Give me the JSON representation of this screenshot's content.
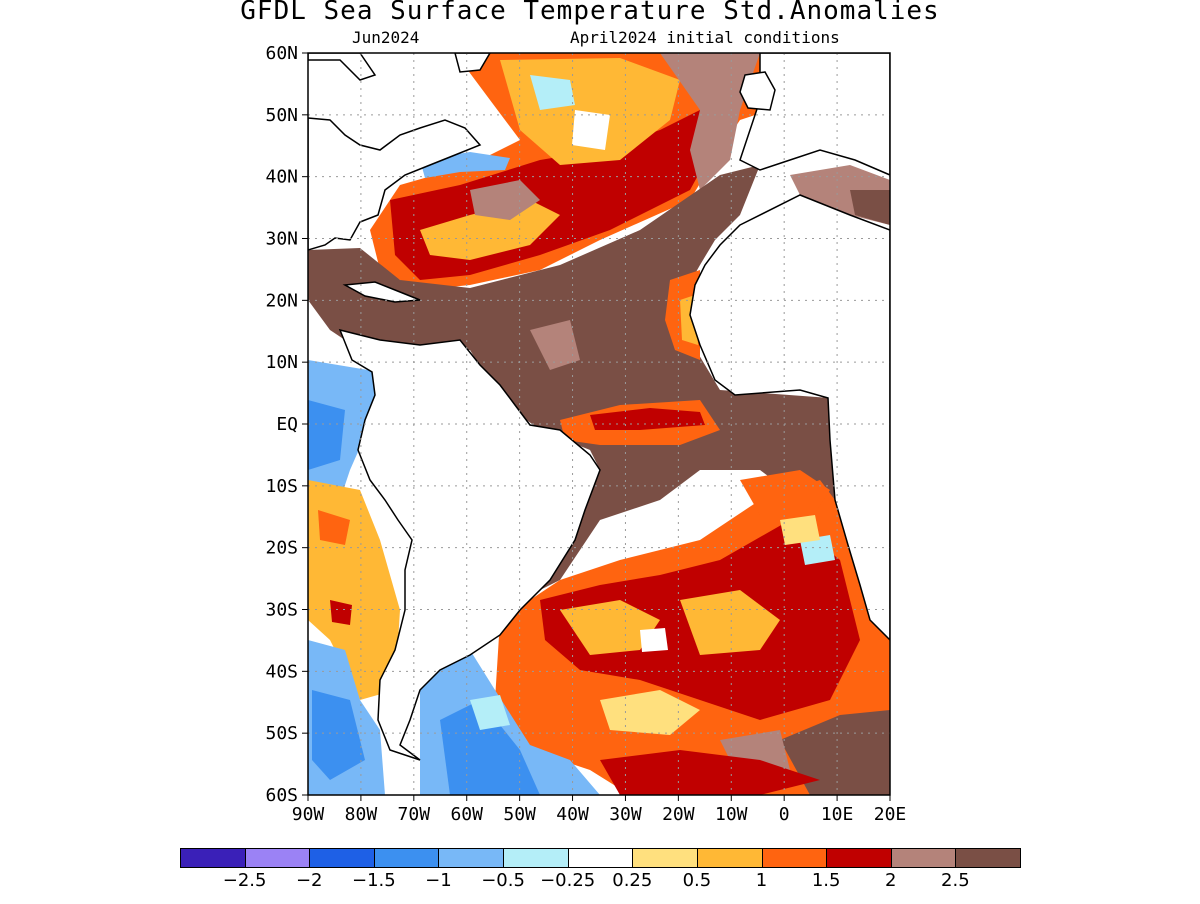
{
  "title": "GFDL Sea Surface Temperature Std.Anomalies",
  "subtitle_left": "Jun2024",
  "subtitle_right": "April2024 initial conditions",
  "map": {
    "lon_range": [
      -90,
      20
    ],
    "lat_range": [
      -60,
      60
    ],
    "lon_ticks": [
      "90W",
      "80W",
      "70W",
      "60W",
      "50W",
      "40W",
      "30W",
      "20W",
      "10W",
      "0",
      "10E",
      "20E"
    ],
    "lat_ticks": [
      "60N",
      "50N",
      "40N",
      "30N",
      "20N",
      "10N",
      "EQ",
      "10S",
      "20S",
      "30S",
      "40S",
      "50S",
      "60S"
    ],
    "grid": "dotted",
    "land_color": "#ffffff",
    "coastline_color": "#000000"
  },
  "colorbar": {
    "colors": [
      "#3a20b8",
      "#9b82f5",
      "#1e60e6",
      "#3c90f0",
      "#78b8f7",
      "#b4eef8",
      "#ffffff",
      "#ffe07e",
      "#ffb835",
      "#ff6410",
      "#c00000",
      "#b4837a",
      "#7a4f45"
    ],
    "labels": [
      "-2.5",
      "-2",
      "-1.5",
      "-1",
      "-0.5",
      "-0.25",
      "0.25",
      "0.5",
      "1",
      "1.5",
      "2",
      "2.5"
    ]
  }
}
